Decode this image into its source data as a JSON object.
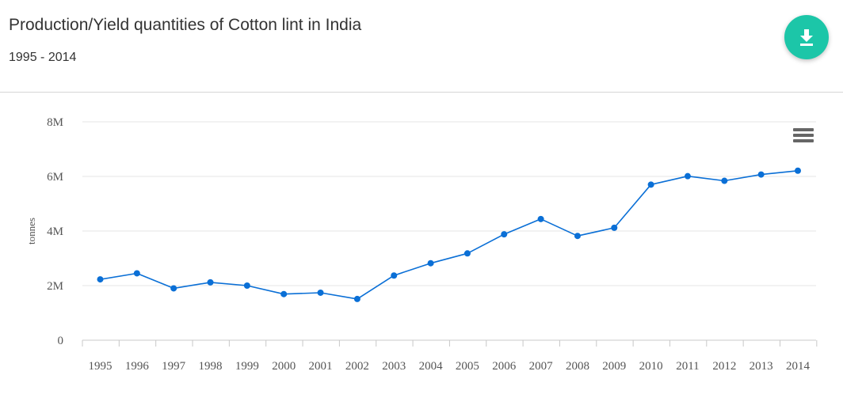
{
  "header": {
    "title": "Production/Yield quantities of Cotton lint in India",
    "subtitle": "1995 - 2014",
    "download_icon": "download-icon"
  },
  "toolbar": {
    "menu_icon": "hamburger-menu-icon"
  },
  "colors": {
    "accent": "#1cc6a8",
    "series": "#0a6fd6",
    "grid": "#e6e6e6"
  },
  "chart_data": {
    "type": "line",
    "title": "Production/Yield quantities of Cotton lint in India",
    "subtitle": "1995 - 2014",
    "xlabel": "",
    "ylabel": "tonnes",
    "ylim": [
      0,
      8000000
    ],
    "yticks": [
      0,
      2000000,
      4000000,
      6000000,
      8000000
    ],
    "ytick_labels": [
      "0",
      "2M",
      "4M",
      "6M",
      "8M"
    ],
    "grid": true,
    "categories": [
      "1995",
      "1996",
      "1997",
      "1998",
      "1999",
      "2000",
      "2001",
      "2002",
      "2003",
      "2004",
      "2005",
      "2006",
      "2007",
      "2008",
      "2009",
      "2010",
      "2011",
      "2012",
      "2013",
      "2014"
    ],
    "series": [
      {
        "name": "Cotton lint",
        "values": [
          2230000,
          2450000,
          1900000,
          2120000,
          2000000,
          1690000,
          1740000,
          1510000,
          2370000,
          2820000,
          3180000,
          3880000,
          4440000,
          3820000,
          4120000,
          5700000,
          6010000,
          5840000,
          6070000,
          6210000
        ]
      }
    ]
  }
}
